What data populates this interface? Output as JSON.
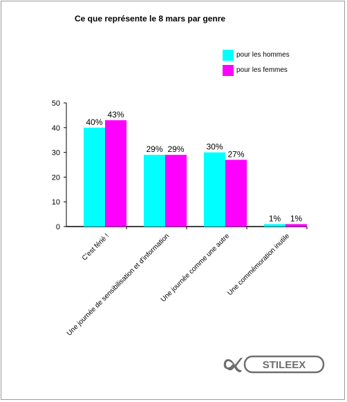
{
  "chart_data": {
    "type": "bar",
    "title": "Ce que représente le 8 mars par genre",
    "categories": [
      "C'est férié !",
      "Une journée de sensibilisation et d'information",
      "Une journée comme une autre",
      "Une commémoration inutile"
    ],
    "series": [
      {
        "name": "pour les hommes",
        "values": [
          40,
          29,
          30,
          1
        ],
        "labels": [
          "40%",
          "29%",
          "30%",
          "1%"
        ],
        "color": "#00ffff"
      },
      {
        "name": "pour les femmes",
        "values": [
          43,
          29,
          27,
          1
        ],
        "labels": [
          "43%",
          "29%",
          "27%",
          "1%"
        ],
        "color": "#ff00ff"
      }
    ],
    "y_ticks": [
      "0",
      "10",
      "20",
      "30",
      "40",
      "50"
    ],
    "ylim": [
      0,
      50
    ],
    "grid": false,
    "legend_position": "top-right"
  },
  "logo": {
    "text": "STILEEX"
  }
}
